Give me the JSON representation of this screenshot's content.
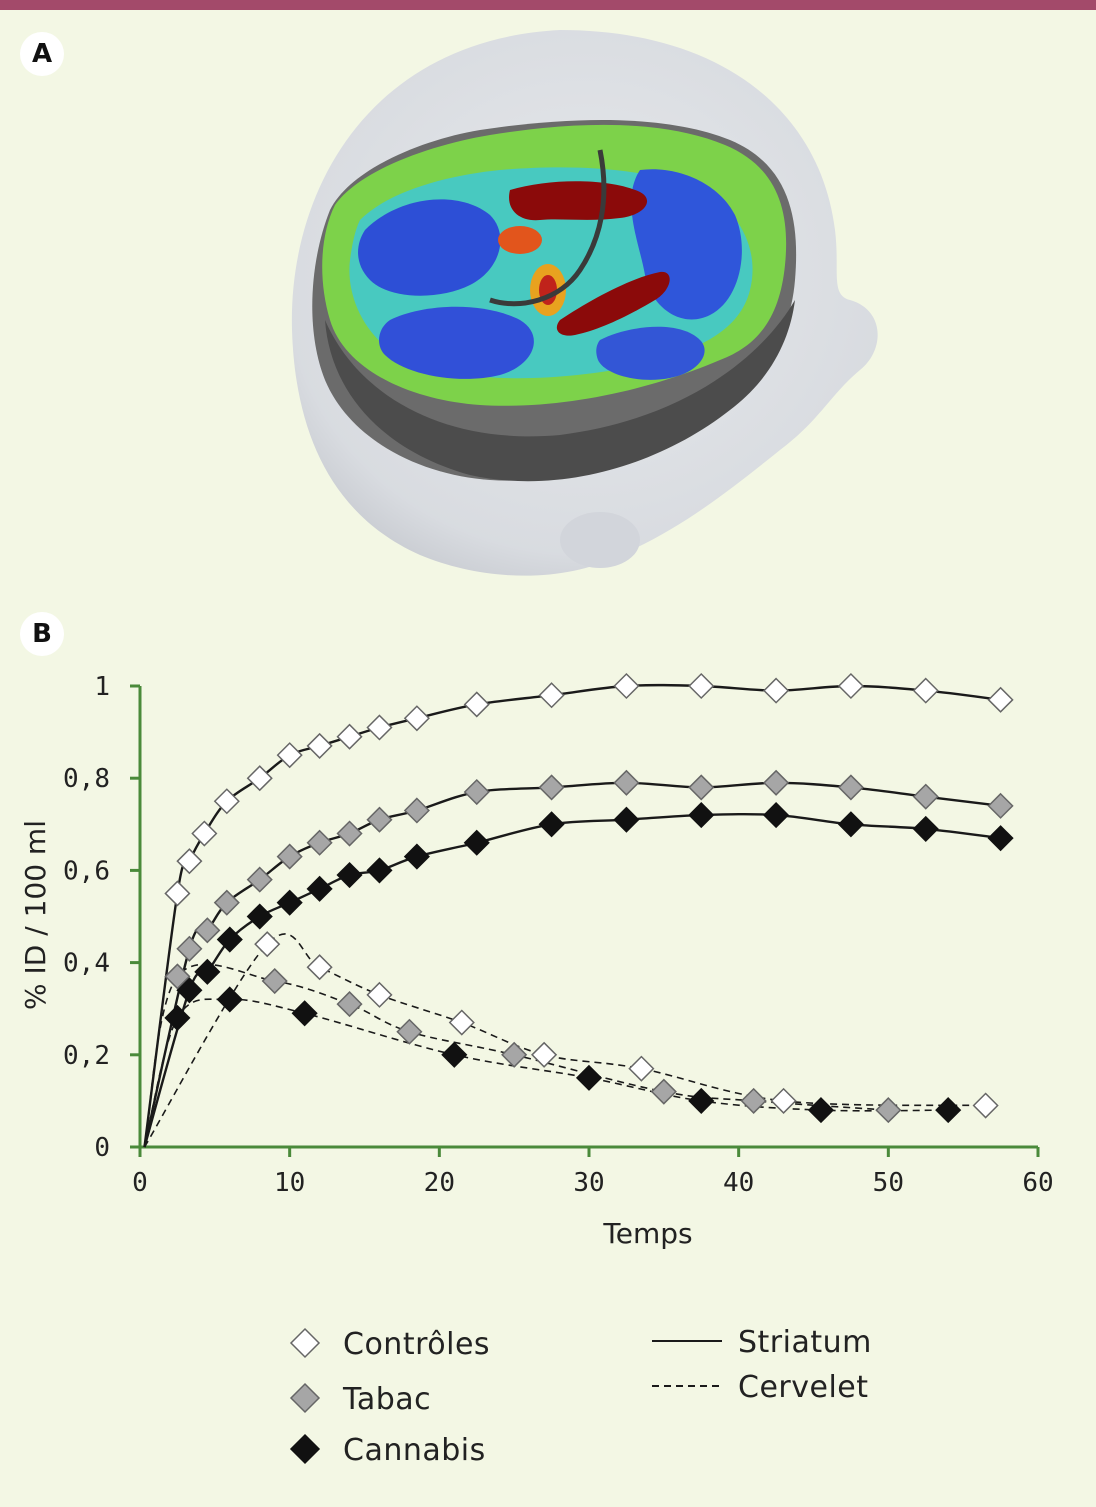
{
  "panels": {
    "a_label": "A",
    "b_label": "B"
  },
  "chart_data": {
    "type": "line",
    "xlabel": "Temps",
    "ylabel": "% ID / 100 ml",
    "xlim": [
      0,
      60
    ],
    "ylim": [
      0,
      1
    ],
    "x_ticks": [
      "0",
      "10",
      "20",
      "30",
      "40",
      "50",
      "60"
    ],
    "y_ticks": [
      "0",
      "0,2",
      "0,4",
      "0,6",
      "0,8",
      "1"
    ],
    "axis_color": "#4a8a3a",
    "groups": [
      {
        "name": "Contrôles",
        "fill": "#ffffff"
      },
      {
        "name": "Tabac",
        "fill": "#a6a6a6"
      },
      {
        "name": "Cannabis",
        "fill": "#111111"
      }
    ],
    "regions": [
      {
        "name": "Striatum",
        "dash": "solid"
      },
      {
        "name": "Cervelet",
        "dash": "dashed"
      }
    ],
    "series": [
      {
        "group": "Contrôles",
        "region": "Striatum",
        "points": [
          [
            2.5,
            0.55
          ],
          [
            3.3,
            0.62
          ],
          [
            4.3,
            0.68
          ],
          [
            5.8,
            0.75
          ],
          [
            8,
            0.8
          ],
          [
            10,
            0.85
          ],
          [
            12,
            0.87
          ],
          [
            14,
            0.89
          ],
          [
            16,
            0.91
          ],
          [
            18.5,
            0.93
          ],
          [
            22.5,
            0.96
          ],
          [
            27.5,
            0.98
          ],
          [
            32.5,
            1.0
          ],
          [
            37.5,
            1.0
          ],
          [
            42.5,
            0.99
          ],
          [
            47.5,
            1.0
          ],
          [
            52.5,
            0.99
          ],
          [
            57.5,
            0.97
          ]
        ]
      },
      {
        "group": "Tabac",
        "region": "Striatum",
        "points": [
          [
            3.3,
            0.43
          ],
          [
            4.5,
            0.47
          ],
          [
            5.8,
            0.53
          ],
          [
            8,
            0.58
          ],
          [
            10,
            0.63
          ],
          [
            12,
            0.66
          ],
          [
            14,
            0.68
          ],
          [
            16,
            0.71
          ],
          [
            18.5,
            0.73
          ],
          [
            22.5,
            0.77
          ],
          [
            27.5,
            0.78
          ],
          [
            32.5,
            0.79
          ],
          [
            37.5,
            0.78
          ],
          [
            42.5,
            0.79
          ],
          [
            47.5,
            0.78
          ],
          [
            52.5,
            0.76
          ],
          [
            57.5,
            0.74
          ]
        ]
      },
      {
        "group": "Cannabis",
        "region": "Striatum",
        "points": [
          [
            3.3,
            0.34
          ],
          [
            4.5,
            0.38
          ],
          [
            6,
            0.45
          ],
          [
            8,
            0.5
          ],
          [
            10,
            0.53
          ],
          [
            12,
            0.56
          ],
          [
            14,
            0.59
          ],
          [
            16,
            0.6
          ],
          [
            18.5,
            0.63
          ],
          [
            22.5,
            0.66
          ],
          [
            27.5,
            0.7
          ],
          [
            32.5,
            0.71
          ],
          [
            37.5,
            0.72
          ],
          [
            42.5,
            0.72
          ],
          [
            47.5,
            0.7
          ],
          [
            52.5,
            0.69
          ],
          [
            57.5,
            0.67
          ]
        ]
      },
      {
        "group": "Contrôles",
        "region": "Cervelet",
        "points": [
          [
            8.5,
            0.44
          ],
          [
            12,
            0.39
          ],
          [
            16,
            0.33
          ],
          [
            21.5,
            0.27
          ],
          [
            27,
            0.2
          ],
          [
            33.5,
            0.17
          ],
          [
            43,
            0.1
          ],
          [
            56.5,
            0.09
          ]
        ]
      },
      {
        "group": "Tabac",
        "region": "Cervelet",
        "points": [
          [
            2.5,
            0.37
          ],
          [
            9,
            0.36
          ],
          [
            14,
            0.31
          ],
          [
            18,
            0.25
          ],
          [
            25,
            0.2
          ],
          [
            35,
            0.12
          ],
          [
            41,
            0.1
          ],
          [
            50,
            0.08
          ]
        ]
      },
      {
        "group": "Cannabis",
        "region": "Cervelet",
        "points": [
          [
            2.5,
            0.28
          ],
          [
            6,
            0.32
          ],
          [
            11,
            0.29
          ],
          [
            21,
            0.2
          ],
          [
            30,
            0.15
          ],
          [
            37.5,
            0.1
          ],
          [
            45.5,
            0.08
          ],
          [
            54,
            0.08
          ]
        ]
      }
    ]
  }
}
